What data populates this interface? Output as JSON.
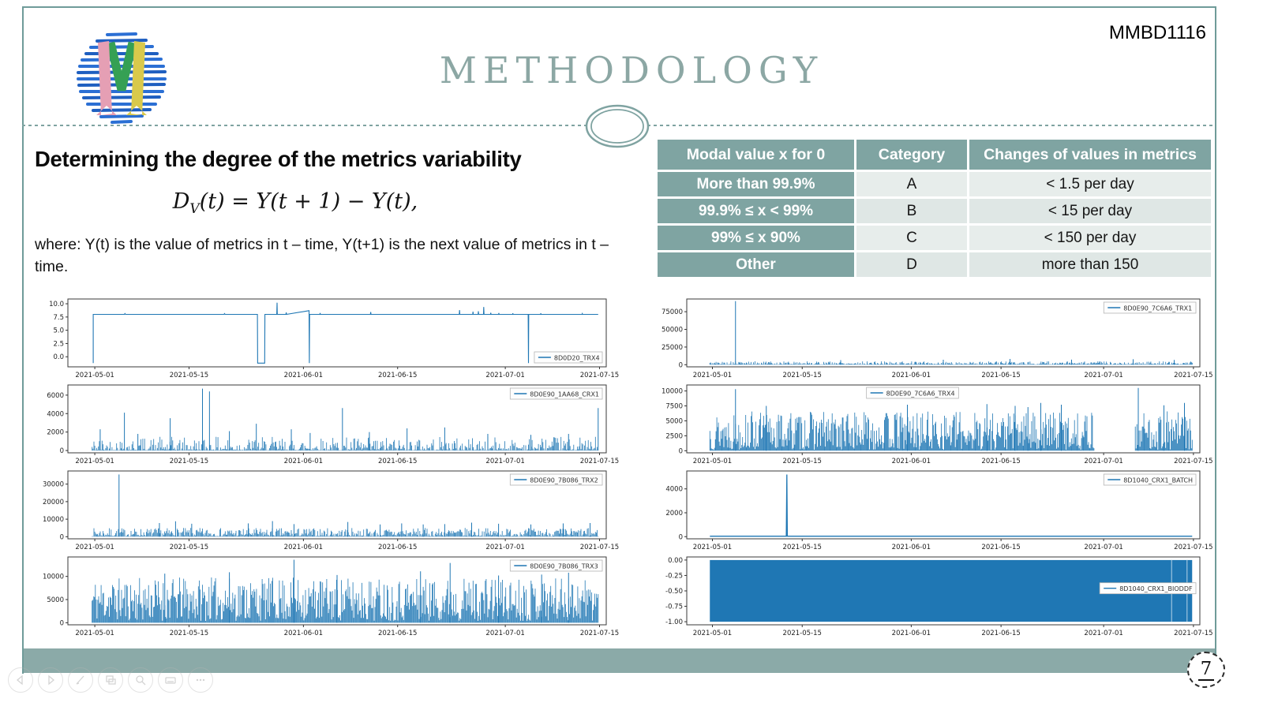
{
  "slide": {
    "code": "MMBD1116",
    "title": "METHODOLOGY",
    "page_number": "7",
    "accent_color": "#7fa3a1",
    "band_color": "#8baaa8",
    "chart_line_color": "#1f77b4"
  },
  "logo": {
    "description": "sphere of blue sketch strokes with letter M",
    "colors": {
      "sphere": "#2b6fd4",
      "m_left": "#e59fb4",
      "m_mid": "#35a054",
      "m_right": "#d9c94b"
    }
  },
  "content": {
    "heading": "Determining the degree of the metrics variability",
    "formula": {
      "d": "D",
      "sub": "V",
      "rest": "(t) = Y(t + 1) − Y(t),"
    },
    "where": "where: Y(t) is the value of metrics in t – time, Y(t+1) is the next value of metrics in t – time."
  },
  "table": {
    "headers": [
      "Modal value x for 0",
      "Category",
      "Changes of values in metrics"
    ],
    "rows": [
      {
        "modal": "More than 99.9%",
        "category": "A",
        "changes": "< 1.5 per day"
      },
      {
        "modal": "99.9% ≤ x < 99%",
        "category": "B",
        "changes": "< 15 per day"
      },
      {
        "modal": "99% ≤ x 90%",
        "category": "C",
        "changes": "< 150 per day"
      },
      {
        "modal": "Other",
        "category": "D",
        "changes": "more than 150"
      }
    ]
  },
  "presenter_controls": [
    "previous-slide",
    "next-slide",
    "pen",
    "slide-panel",
    "zoom",
    "notes",
    "more-options"
  ],
  "chart_data": {
    "type": "line",
    "x_ticks": [
      {
        "f": 0.05,
        "label": "2021-05-01"
      },
      {
        "f": 0.225,
        "label": "2021-05-15"
      },
      {
        "f": 0.4375,
        "label": "2021-06-01"
      },
      {
        "f": 0.6125,
        "label": "2021-06-15"
      },
      {
        "f": 0.8125,
        "label": "2021-07-01"
      },
      {
        "f": 0.9875,
        "label": "2021-07-15"
      }
    ],
    "charts": [
      {
        "id": "left-1",
        "col": "left",
        "row": 0,
        "legend": "8D0D20_TRX4",
        "legend_pos": "br",
        "ylim": [
          -1.9,
          10.9
        ],
        "yticks": [
          0,
          2.5,
          5,
          7.5,
          10
        ],
        "ylabels": [
          "0.0",
          "2.5",
          "5.0",
          "7.5",
          "10.0"
        ],
        "series": {
          "kind": "points",
          "stroke_w": 1.1,
          "points": [
            [
              0.047,
              -1.2
            ],
            [
              0.047,
              8
            ],
            [
              0.105,
              8
            ],
            [
              0.106,
              8.15
            ],
            [
              0.107,
              8
            ],
            [
              0.29,
              8
            ],
            [
              0.291,
              8.15
            ],
            [
              0.292,
              8
            ],
            [
              0.352,
              8
            ],
            [
              0.3525,
              -1.2
            ],
            [
              0.3655,
              -1.2
            ],
            [
              0.366,
              8
            ],
            [
              0.388,
              8
            ],
            [
              0.3885,
              10.2
            ],
            [
              0.389,
              8
            ],
            [
              0.405,
              8
            ],
            [
              0.4055,
              8.35
            ],
            [
              0.406,
              8
            ],
            [
              0.448,
              8.7
            ],
            [
              0.4485,
              -1.2
            ],
            [
              0.449,
              8
            ],
            [
              0.468,
              8
            ],
            [
              0.4685,
              8.25
            ],
            [
              0.469,
              8
            ],
            [
              0.562,
              8
            ],
            [
              0.5625,
              8.45
            ],
            [
              0.563,
              8
            ],
            [
              0.727,
              8
            ],
            [
              0.7275,
              8.8
            ],
            [
              0.728,
              8
            ],
            [
              0.752,
              8
            ],
            [
              0.7525,
              8.5
            ],
            [
              0.753,
              8
            ],
            [
              0.762,
              8
            ],
            [
              0.7625,
              8.6
            ],
            [
              0.763,
              8
            ],
            [
              0.772,
              8
            ],
            [
              0.7725,
              9.4
            ],
            [
              0.773,
              8
            ],
            [
              0.785,
              8
            ],
            [
              0.7855,
              8.3
            ],
            [
              0.786,
              8
            ],
            [
              0.8,
              8
            ],
            [
              0.8005,
              8.25
            ],
            [
              0.801,
              8
            ],
            [
              0.826,
              8
            ],
            [
              0.8265,
              8.2
            ],
            [
              0.827,
              8
            ],
            [
              0.855,
              8
            ],
            [
              0.8555,
              -1.2
            ],
            [
              0.856,
              8
            ],
            [
              0.878,
              8
            ],
            [
              0.8785,
              8.2
            ],
            [
              0.879,
              8
            ],
            [
              0.955,
              8
            ],
            [
              0.9555,
              8.15
            ],
            [
              0.956,
              8
            ],
            [
              0.985,
              8
            ]
          ]
        }
      },
      {
        "id": "left-2",
        "col": "left",
        "row": 1,
        "legend": "8D0E90_1AA68_CRX1",
        "legend_pos": "tr",
        "ylim": [
          -250,
          7100
        ],
        "yticks": [
          0,
          2000,
          4000,
          6000
        ],
        "ylabels": [
          "0",
          "2000",
          "4000",
          "6000"
        ],
        "series": {
          "kind": "noise",
          "n": 560,
          "y0": 40,
          "y1": 1500,
          "pow": 2.8,
          "seed": 42,
          "spikes": [
            [
              0.06,
              2300
            ],
            [
              0.105,
              4100
            ],
            [
              0.13,
              1800
            ],
            [
              0.19,
              3500
            ],
            [
              0.25,
              6700
            ],
            [
              0.263,
              6400
            ],
            [
              0.3,
              2100
            ],
            [
              0.35,
              2900
            ],
            [
              0.415,
              2300
            ],
            [
              0.45,
              1900
            ],
            [
              0.51,
              4600
            ],
            [
              0.56,
              2000
            ],
            [
              0.63,
              2400
            ],
            [
              0.7,
              2500
            ],
            [
              0.78,
              1800
            ],
            [
              0.86,
              1700
            ],
            [
              0.93,
              1800
            ],
            [
              0.985,
              4600
            ]
          ]
        }
      },
      {
        "id": "left-3",
        "col": "left",
        "row": 2,
        "legend": "8D0E90_7B086_TRX2",
        "legend_pos": "tr",
        "ylim": [
          -1200,
          37500
        ],
        "yticks": [
          0,
          10000,
          20000,
          30000
        ],
        "ylabels": [
          "0",
          "10000",
          "20000",
          "30000"
        ],
        "series": {
          "kind": "noise",
          "n": 560,
          "y0": 300,
          "y1": 5000,
          "pow": 1.7,
          "seed": 7,
          "spikes": [
            [
              0.095,
              35500
            ],
            [
              0.17,
              7800
            ],
            [
              0.2,
              8800
            ],
            [
              0.23,
              7400
            ],
            [
              0.335,
              7600
            ],
            [
              0.38,
              8900
            ],
            [
              0.42,
              7200
            ],
            [
              0.52,
              8400
            ],
            [
              0.58,
              7000
            ],
            [
              0.62,
              7600
            ],
            [
              0.66,
              7000
            ],
            [
              0.7,
              7200
            ],
            [
              0.75,
              8000
            ],
            [
              0.8,
              7400
            ],
            [
              0.86,
              7000
            ],
            [
              0.92,
              7600
            ],
            [
              0.97,
              7800
            ]
          ]
        }
      },
      {
        "id": "left-4",
        "col": "left",
        "row": 3,
        "legend": "8D0E90_7B086_TRX3",
        "legend_pos": "tr",
        "ylim": [
          -450,
          14200
        ],
        "yticks": [
          0,
          5000,
          10000
        ],
        "ylabels": [
          "0",
          "5000",
          "10000"
        ],
        "series": {
          "kind": "noise",
          "n": 620,
          "y0": 400,
          "y1": 9800,
          "pow": 1.15,
          "seed": 11,
          "spikes": [
            [
              0.18,
              10600
            ],
            [
              0.3,
              10900
            ],
            [
              0.42,
              13600
            ],
            [
              0.5,
              10300
            ],
            [
              0.655,
              11100
            ],
            [
              0.71,
              12900
            ],
            [
              0.8,
              10200
            ],
            [
              0.88,
              10400
            ],
            [
              0.93,
              10800
            ]
          ]
        }
      },
      {
        "id": "right-1",
        "col": "right",
        "row": 0,
        "legend": "8D0E90_7C6A6_TRX1",
        "legend_pos": "tr",
        "ylim": [
          -3000,
          93000
        ],
        "yticks": [
          0,
          25000,
          50000,
          75000
        ],
        "ylabels": [
          "0",
          "25000",
          "50000",
          "75000"
        ],
        "series": {
          "kind": "noise",
          "n": 620,
          "y0": 400,
          "y1": 4800,
          "pow": 1.9,
          "seed": 5,
          "spikes": [
            [
              0.095,
              90000
            ],
            [
              0.3,
              6500
            ],
            [
              0.5,
              7000
            ],
            [
              0.63,
              8200
            ],
            [
              0.75,
              7200
            ],
            [
              0.87,
              7800
            ],
            [
              0.95,
              6800
            ]
          ]
        }
      },
      {
        "id": "right-2",
        "col": "right",
        "row": 1,
        "legend": "8D0E90_7C6A6_TRX4",
        "legend_pos": "tc",
        "ylim": [
          -350,
          11000
        ],
        "yticks": [
          0,
          2500,
          5000,
          7500,
          10000
        ],
        "ylabels": [
          "0",
          "2500",
          "5000",
          "7500",
          "10000"
        ],
        "series": {
          "kind": "noise",
          "n": 620,
          "y0": 150,
          "y1": 6600,
          "pow": 1.25,
          "seed": 13,
          "gap": [
            0.795,
            0.873
          ],
          "spikes": [
            [
              0.095,
              10300
            ],
            [
              0.155,
              7500
            ],
            [
              0.43,
              7700
            ],
            [
              0.585,
              7800
            ],
            [
              0.64,
              7500
            ],
            [
              0.665,
              7300
            ],
            [
              0.69,
              8000
            ],
            [
              0.73,
              7700
            ],
            [
              0.88,
              10500
            ],
            [
              0.93,
              7600
            ],
            [
              0.97,
              8000
            ]
          ]
        }
      },
      {
        "id": "right-3",
        "col": "right",
        "row": 2,
        "legend": "8D1040_CRX1_BATCH",
        "legend_pos": "tr",
        "ylim": [
          -180,
          5500
        ],
        "yticks": [
          0,
          2000,
          4000
        ],
        "ylabels": [
          "0",
          "2000",
          "4000"
        ],
        "series": {
          "kind": "points",
          "stroke_w": 1.3,
          "points": [
            [
              0.045,
              40
            ],
            [
              0.194,
              40
            ],
            [
              0.195,
              5200
            ],
            [
              0.196,
              40
            ],
            [
              0.985,
              40
            ]
          ]
        }
      },
      {
        "id": "right-4",
        "col": "right",
        "row": 3,
        "legend": "8D1040_CRX1_BIODDF",
        "legend_pos": "rm",
        "ylim": [
          -1.05,
          0.05
        ],
        "yticks": [
          0,
          -0.25,
          -0.5,
          -0.75,
          -1
        ],
        "ylabels": [
          "0.00",
          "-0.25",
          "-0.50",
          "-0.75",
          "-1.00"
        ],
        "series": {
          "kind": "block",
          "x0": 0.045,
          "x1": 0.985,
          "ytop": 0,
          "ybot": -1,
          "seams": [
            0.945,
            0.975
          ]
        }
      }
    ]
  }
}
